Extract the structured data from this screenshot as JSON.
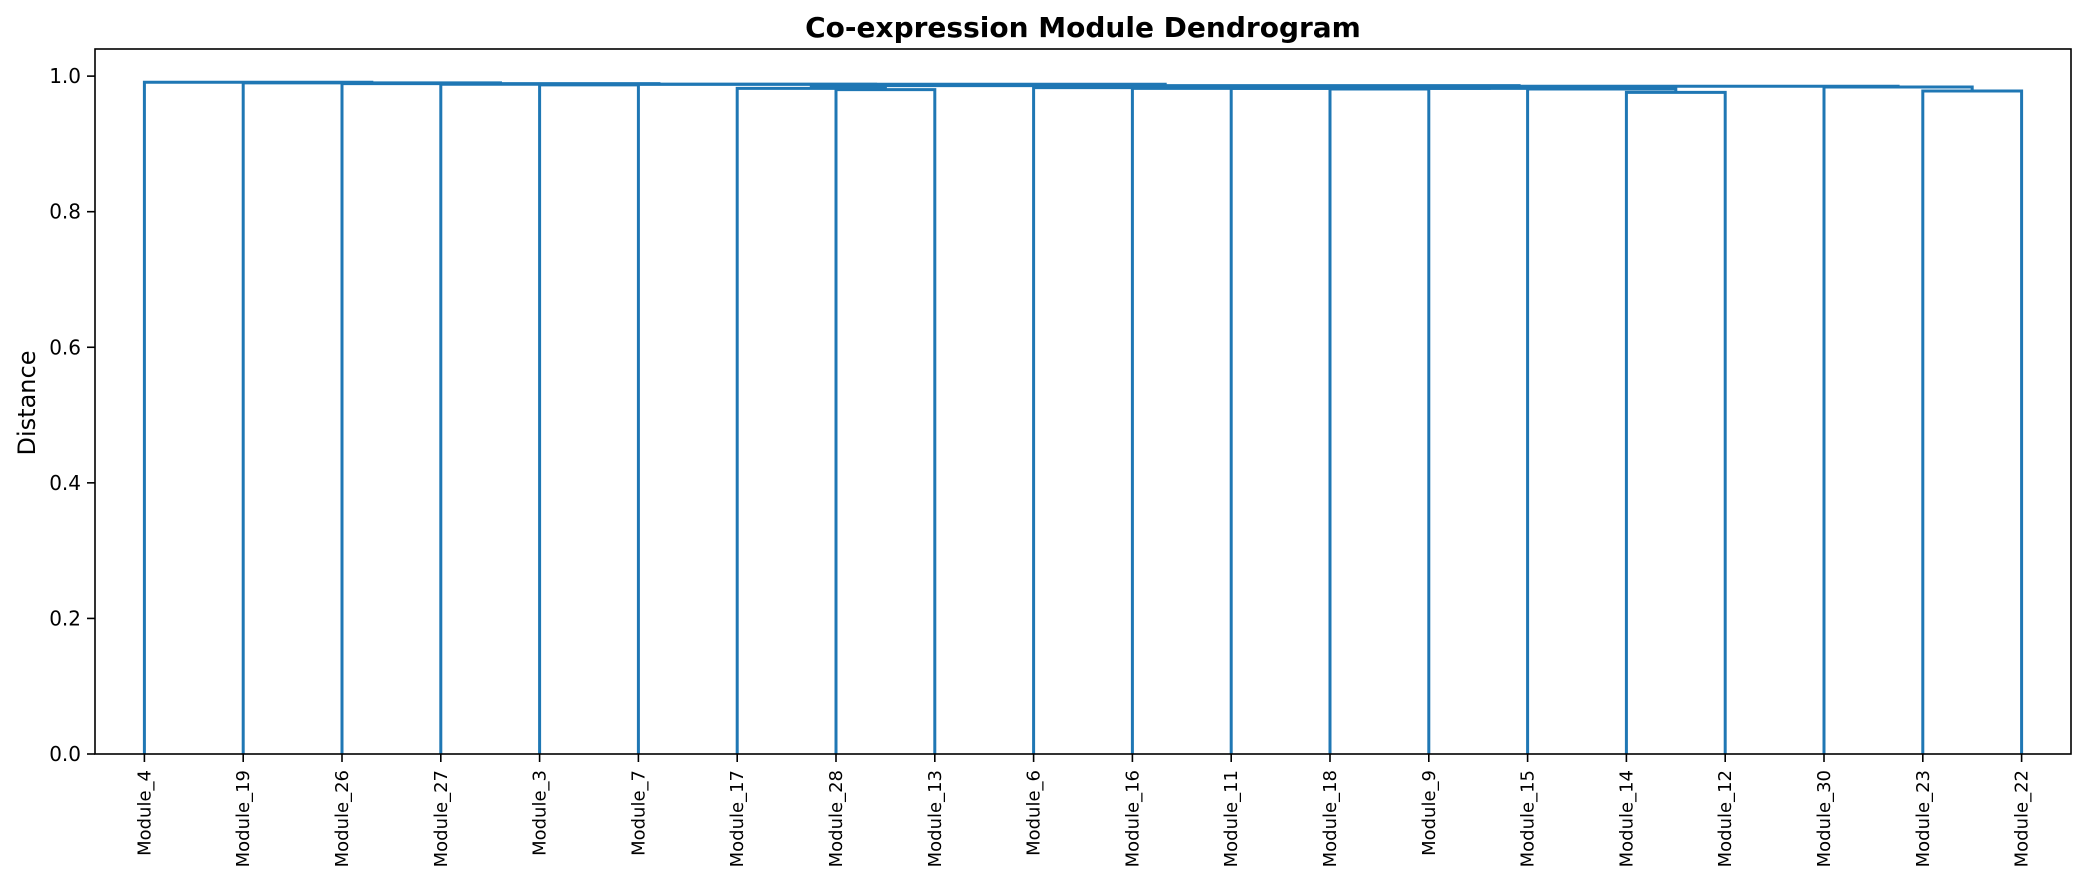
{
  "chart_data": {
    "type": "dendrogram",
    "title": "Co-expression Module Dendrogram",
    "xlabel": "",
    "ylabel": "Distance",
    "ylim": [
      0,
      1.04
    ],
    "yticks": [
      "0.0",
      "0.2",
      "0.4",
      "0.6",
      "0.8",
      "1.0"
    ],
    "grid": false,
    "link_color": "#1f77b4",
    "leaves": [
      "Module_4",
      "Module_19",
      "Module_26",
      "Module_27",
      "Module_3",
      "Module_7",
      "Module_17",
      "Module_28",
      "Module_13",
      "Module_6",
      "Module_16",
      "Module_11",
      "Module_18",
      "Module_9",
      "Module_15",
      "Module_14",
      "Module_12",
      "Module_30",
      "Module_23",
      "Module_22"
    ],
    "merges": [
      {
        "left": "Module_14",
        "right": "Module_12",
        "height": 0.976
      },
      {
        "left": "Module_23",
        "right": "Module_22",
        "height": 0.978
      },
      {
        "left": "Module_28",
        "right": "Module_13",
        "height": 0.98
      },
      {
        "left": "Module_18",
        "right": "Module_9",
        "height": 0.981
      },
      {
        "left": "Module_15",
        "right": [
          "Module_14",
          "Module_12"
        ],
        "height": 0.981
      },
      {
        "left": "Module_17",
        "right": [
          "Module_28",
          "Module_13"
        ],
        "height": 0.982
      },
      {
        "left": [
          "Module_18",
          "Module_9"
        ],
        "right": [
          "Module_15",
          "Module_14",
          "Module_12"
        ],
        "height": 0.982
      },
      {
        "left": "Module_11",
        "right": [
          "Module_18",
          "Module_9",
          "Module_15",
          "Module_14",
          "Module_12"
        ],
        "height": 0.982
      },
      {
        "left": "Module_16",
        "right": [
          "Module_11",
          "Module_18",
          "Module_9",
          "Module_15",
          "Module_14",
          "Module_12"
        ],
        "height": 0.982
      },
      {
        "left": "Module_6",
        "right": [
          "Module_16",
          "Module_11",
          "Module_18",
          "Module_9",
          "Module_15",
          "Module_14",
          "Module_12"
        ],
        "height": 0.983
      },
      {
        "left": "Module_30",
        "right": [
          "Module_23",
          "Module_22"
        ],
        "height": 0.984
      },
      {
        "left": [
          "Module_6",
          "Module_16",
          "Module_11",
          "Module_18",
          "Module_9",
          "Module_15",
          "Module_14",
          "Module_12"
        ],
        "right": [
          "Module_30",
          "Module_23",
          "Module_22"
        ],
        "height": 0.985
      },
      {
        "left": [
          "Module_17",
          "Module_28",
          "Module_13"
        ],
        "right": [
          "Module_6",
          "Module_16",
          "Module_11",
          "Module_18",
          "Module_9",
          "Module_15",
          "Module_14",
          "Module_12",
          "Module_30",
          "Module_23",
          "Module_22"
        ],
        "height": 0.986
      },
      {
        "left": "Module_3",
        "right": "Module_7",
        "height": 0.987
      },
      {
        "left": [
          "Module_3",
          "Module_7"
        ],
        "right": [
          "Module_17",
          "Module_28",
          "Module_13",
          "Module_6",
          "Module_16",
          "Module_11",
          "Module_18",
          "Module_9",
          "Module_15",
          "Module_14",
          "Module_12",
          "Module_30",
          "Module_23",
          "Module_22"
        ],
        "height": 0.988
      },
      {
        "left": "Module_27",
        "right": [
          "Module_3",
          "Module_7",
          "Module_17",
          "Module_28",
          "Module_13",
          "Module_6",
          "Module_16",
          "Module_11",
          "Module_18",
          "Module_9",
          "Module_15",
          "Module_14",
          "Module_12",
          "Module_30",
          "Module_23",
          "Module_22"
        ],
        "height": 0.988
      },
      {
        "left": "Module_26",
        "right": [
          "Module_27",
          "Module_3",
          "Module_7",
          "Module_17",
          "Module_28",
          "Module_13",
          "Module_6",
          "Module_16",
          "Module_11",
          "Module_18",
          "Module_9",
          "Module_15",
          "Module_14",
          "Module_12",
          "Module_30",
          "Module_23",
          "Module_22"
        ],
        "height": 0.989
      },
      {
        "left": "Module_19",
        "right": [
          "Module_26",
          "Module_27",
          "Module_3",
          "Module_7",
          "Module_17",
          "Module_28",
          "Module_13",
          "Module_6",
          "Module_16",
          "Module_11",
          "Module_18",
          "Module_9",
          "Module_15",
          "Module_14",
          "Module_12",
          "Module_30",
          "Module_23",
          "Module_22"
        ],
        "height": 0.99
      },
      {
        "left": "Module_4",
        "right": [
          "Module_19",
          "Module_26",
          "Module_27",
          "Module_3",
          "Module_7",
          "Module_17",
          "Module_28",
          "Module_13",
          "Module_6",
          "Module_16",
          "Module_11",
          "Module_18",
          "Module_9",
          "Module_15",
          "Module_14",
          "Module_12",
          "Module_30",
          "Module_23",
          "Module_22"
        ],
        "height": 0.991
      }
    ]
  }
}
